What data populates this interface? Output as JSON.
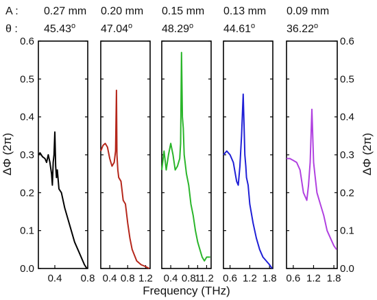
{
  "figure": {
    "xlabel": "Frequency (THz)",
    "ylabel": "ΔΦ (2π)",
    "row_labels": {
      "amplitude": "A :",
      "angle": "θ :"
    }
  },
  "chart_data": [
    {
      "type": "line",
      "amplitude": "0.27 mm",
      "angle": "45.43",
      "angle_unit": "o",
      "color": "#000000",
      "xlim": [
        0.2,
        0.8
      ],
      "ylim": [
        0.0,
        0.6
      ],
      "xticks": [
        "0.4",
        "0.8"
      ],
      "xtick_values": [
        0.4,
        0.8
      ],
      "x": [
        0.2,
        0.22,
        0.25,
        0.28,
        0.3,
        0.32,
        0.34,
        0.36,
        0.37,
        0.38,
        0.39,
        0.4,
        0.41,
        0.42,
        0.43,
        0.45,
        0.48,
        0.52,
        0.56,
        0.6,
        0.64,
        0.68,
        0.72,
        0.76,
        0.79
      ],
      "y": [
        0.3,
        0.305,
        0.295,
        0.29,
        0.28,
        0.3,
        0.28,
        0.25,
        0.22,
        0.28,
        0.3,
        0.36,
        0.27,
        0.24,
        0.26,
        0.21,
        0.2,
        0.16,
        0.13,
        0.1,
        0.07,
        0.05,
        0.03,
        0.01,
        0.0
      ]
    },
    {
      "type": "line",
      "amplitude": "0.20 mm",
      "angle": "47.04",
      "angle_unit": "o",
      "color": "#b5271b",
      "xlim": [
        0.2,
        1.3
      ],
      "ylim": [
        0.0,
        0.6
      ],
      "xticks": [
        "0.4",
        "0.8",
        "1.2"
      ],
      "xtick_values": [
        0.4,
        0.8,
        1.2
      ],
      "x": [
        0.2,
        0.25,
        0.3,
        0.35,
        0.4,
        0.45,
        0.5,
        0.53,
        0.55,
        0.56,
        0.58,
        0.6,
        0.65,
        0.7,
        0.75,
        0.8,
        0.85,
        0.9,
        1.0,
        1.1,
        1.2,
        1.28
      ],
      "y": [
        0.31,
        0.325,
        0.33,
        0.32,
        0.29,
        0.27,
        0.28,
        0.31,
        0.47,
        0.3,
        0.26,
        0.24,
        0.23,
        0.18,
        0.17,
        0.12,
        0.08,
        0.05,
        0.02,
        0.01,
        0.005,
        0.0
      ]
    },
    {
      "type": "line",
      "amplitude": "0.15 mm",
      "angle": "48.29",
      "angle_unit": "o",
      "color": "#2ab52a",
      "xlim": [
        0.2,
        1.3
      ],
      "ylim": [
        0.0,
        0.6
      ],
      "xticks": [
        "0.4",
        "0.8",
        "1",
        "1.2"
      ],
      "xtick_values": [
        0.4,
        0.8,
        1.0,
        1.2
      ],
      "x": [
        0.2,
        0.25,
        0.3,
        0.35,
        0.4,
        0.45,
        0.5,
        0.55,
        0.6,
        0.62,
        0.64,
        0.66,
        0.68,
        0.7,
        0.75,
        0.8,
        0.85,
        0.9,
        0.95,
        1.0,
        1.05,
        1.1,
        1.15,
        1.2,
        1.28
      ],
      "y": [
        0.26,
        0.31,
        0.26,
        0.3,
        0.33,
        0.3,
        0.26,
        0.27,
        0.29,
        0.33,
        0.57,
        0.4,
        0.37,
        0.3,
        0.25,
        0.22,
        0.17,
        0.14,
        0.1,
        0.07,
        0.05,
        0.03,
        0.02,
        0.03,
        0.03
      ]
    },
    {
      "type": "line",
      "amplitude": "0.13 mm",
      "angle": "44.61",
      "angle_unit": "o",
      "color": "#1f1fd6",
      "xlim": [
        0.4,
        1.9
      ],
      "ylim": [
        0.0,
        0.6
      ],
      "xticks": [
        "0.6",
        "1.2",
        "1.8"
      ],
      "xtick_values": [
        0.6,
        1.2,
        1.8
      ],
      "x": [
        0.4,
        0.5,
        0.6,
        0.7,
        0.8,
        0.85,
        0.9,
        0.95,
        1.0,
        1.05,
        1.08,
        1.1,
        1.15,
        1.2,
        1.3,
        1.4,
        1.5,
        1.6,
        1.7,
        1.8,
        1.88
      ],
      "y": [
        0.3,
        0.31,
        0.3,
        0.28,
        0.23,
        0.22,
        0.27,
        0.35,
        0.46,
        0.3,
        0.27,
        0.24,
        0.22,
        0.17,
        0.12,
        0.08,
        0.05,
        0.03,
        0.02,
        0.01,
        0.0
      ]
    },
    {
      "type": "line",
      "amplitude": "0.09 mm",
      "angle": "36.22",
      "angle_unit": "o",
      "color": "#b040e0",
      "xlim": [
        0.4,
        1.9
      ],
      "ylim": [
        0.0,
        0.6
      ],
      "xticks": [
        "0.6",
        "1.2",
        "1.8"
      ],
      "xtick_values": [
        0.6,
        1.2,
        1.8
      ],
      "yticks_right": [
        "0.0",
        "0.1",
        "0.2",
        "0.3",
        "0.4",
        "0.5",
        "0.6"
      ],
      "x": [
        0.4,
        0.5,
        0.6,
        0.7,
        0.8,
        0.9,
        1.0,
        1.05,
        1.1,
        1.15,
        1.2,
        1.25,
        1.3,
        1.4,
        1.5,
        1.6,
        1.7,
        1.8,
        1.88
      ],
      "y": [
        0.29,
        0.29,
        0.285,
        0.28,
        0.26,
        0.2,
        0.18,
        0.22,
        0.28,
        0.42,
        0.28,
        0.24,
        0.2,
        0.17,
        0.14,
        0.1,
        0.08,
        0.06,
        0.05
      ]
    }
  ],
  "y_axis": {
    "ticks": [
      "0.0",
      "0.1",
      "0.2",
      "0.3",
      "0.4",
      "0.5",
      "0.6"
    ],
    "tick_values": [
      0.0,
      0.1,
      0.2,
      0.3,
      0.4,
      0.5,
      0.6
    ]
  }
}
